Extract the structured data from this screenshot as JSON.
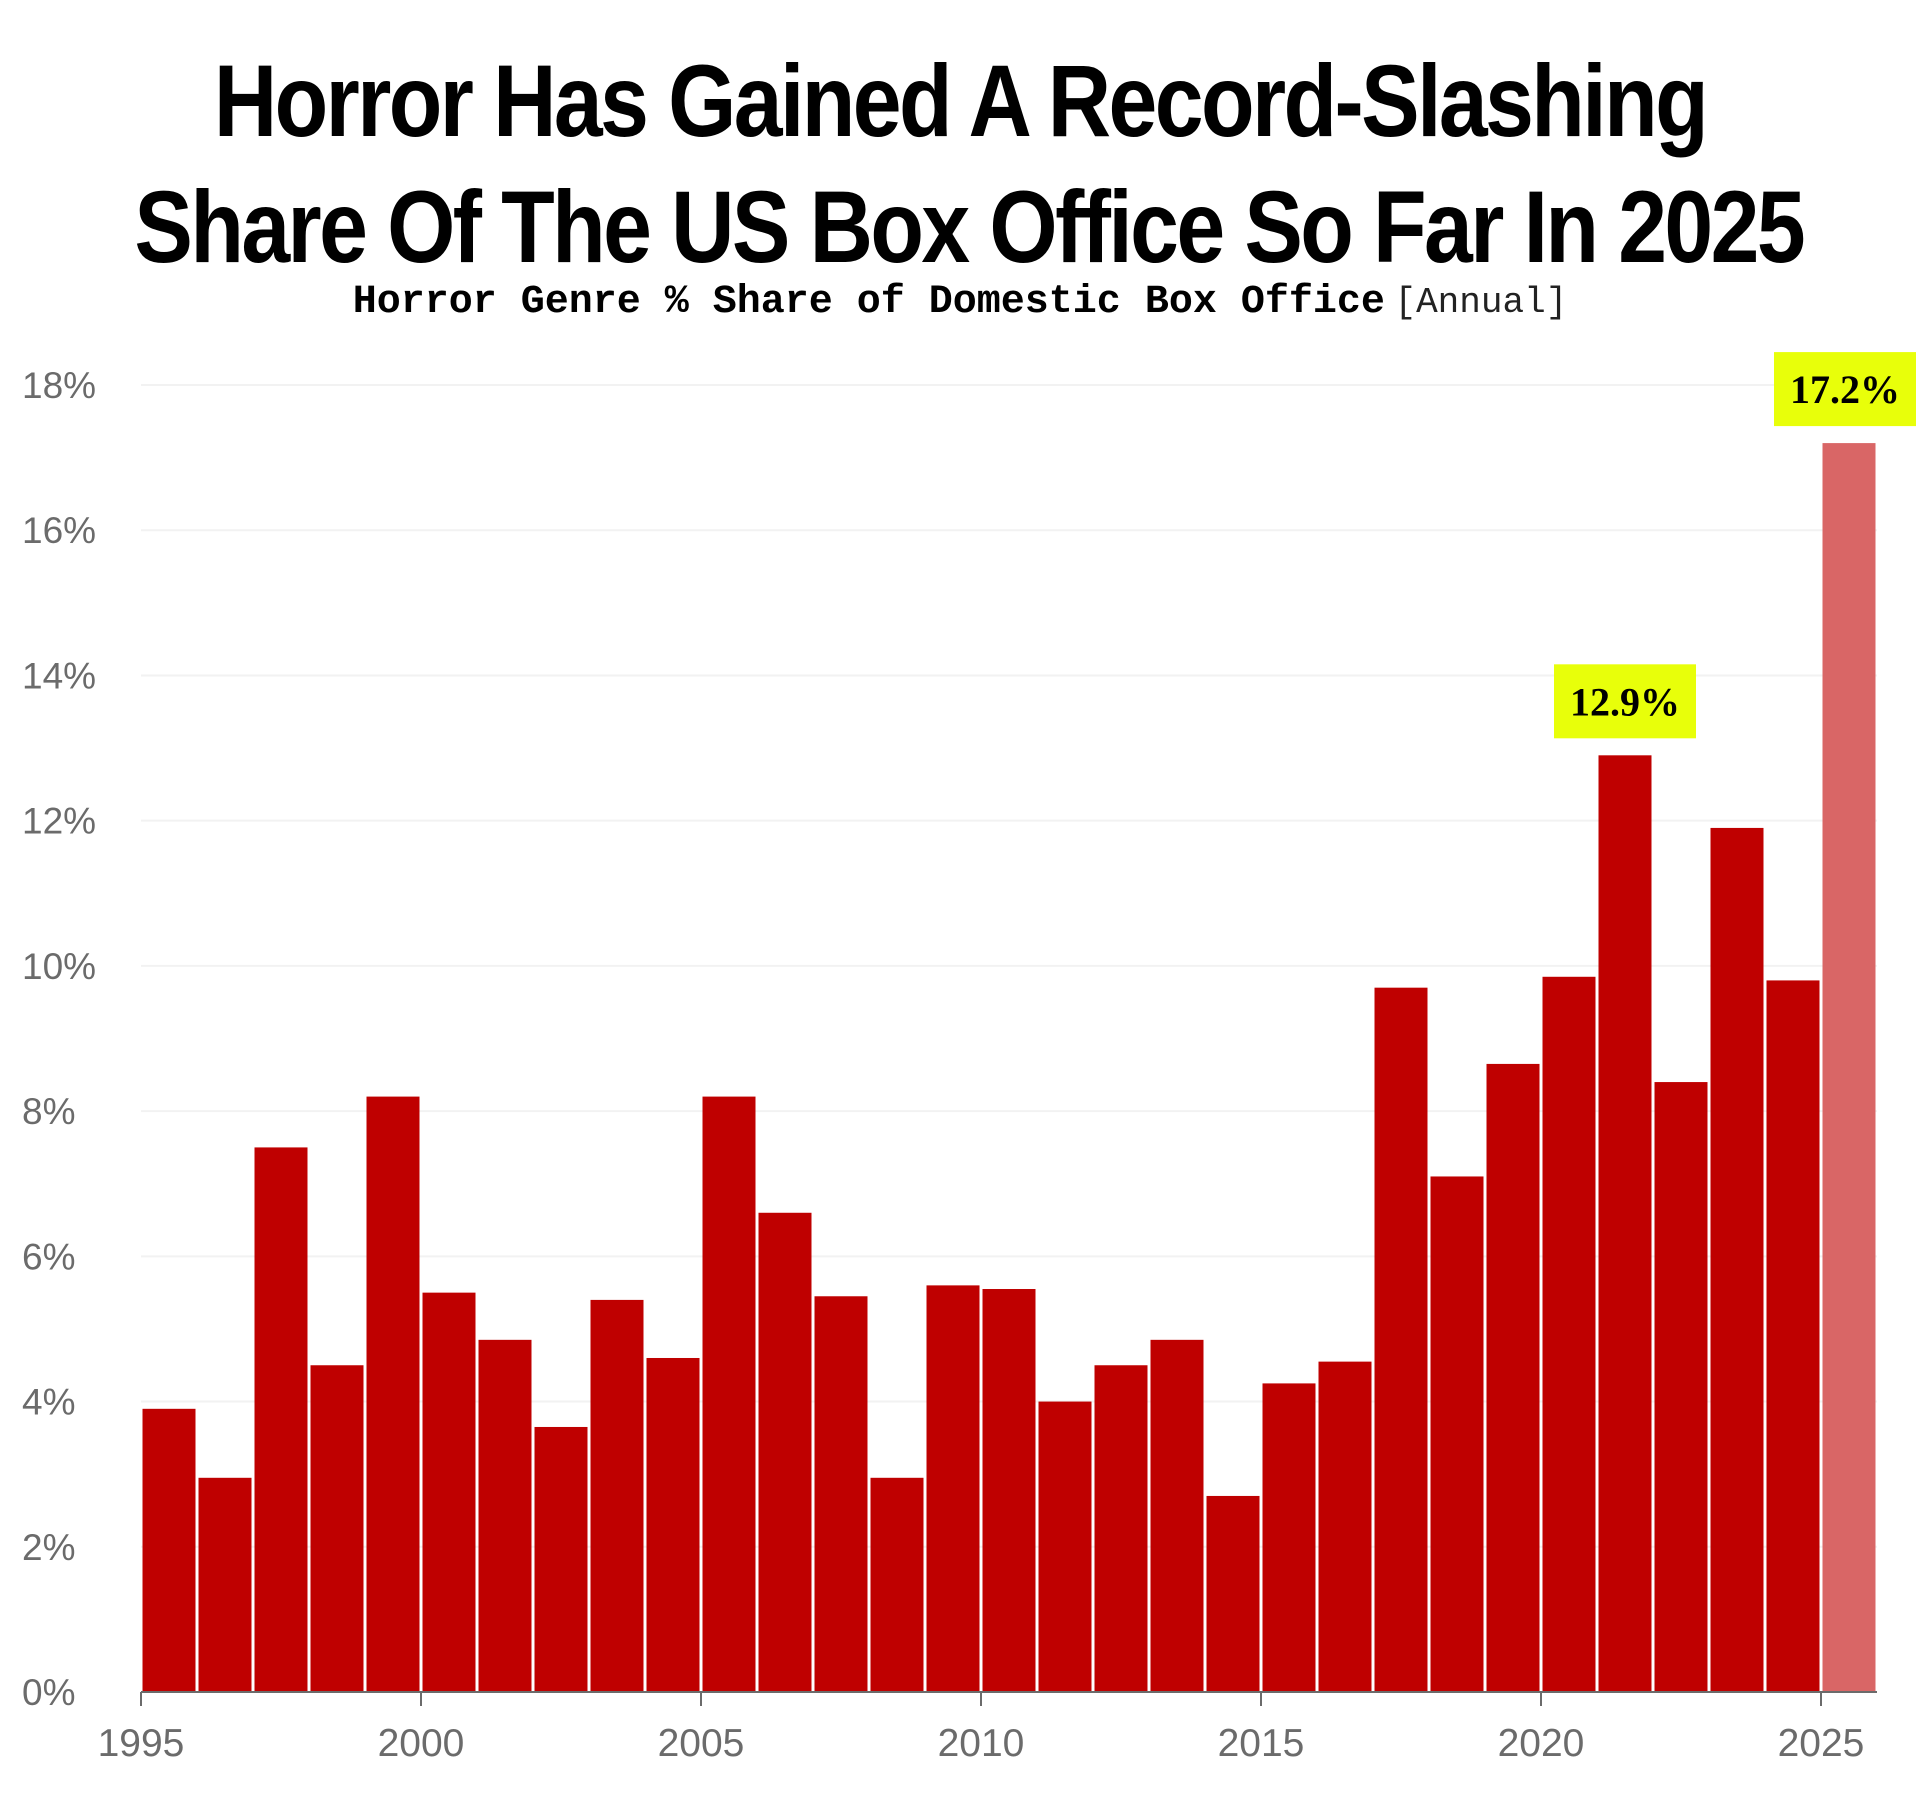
{
  "chart_data": {
    "type": "bar",
    "title_lines": [
      "Horror Has Gained A Record-Slashing",
      "Share Of The US Box Office So Far In 2025"
    ],
    "subtitle": "Horror Genre % Share of Domestic Box Office",
    "subtitle_note": "[Annual]",
    "categories": [
      "1995",
      "1996",
      "1997",
      "1998",
      "1999",
      "2000",
      "2001",
      "2002",
      "2003",
      "2004",
      "2005",
      "2006",
      "2007",
      "2008",
      "2009",
      "2010",
      "2011",
      "2012",
      "2013",
      "2014",
      "2015",
      "2016",
      "2017",
      "2018",
      "2019",
      "2020",
      "2021",
      "2022",
      "2023",
      "2024",
      "2025"
    ],
    "values": [
      3.9,
      2.95,
      7.5,
      4.5,
      8.2,
      5.5,
      4.85,
      3.65,
      5.4,
      4.6,
      8.2,
      6.6,
      5.45,
      2.95,
      5.6,
      5.55,
      4.0,
      4.5,
      4.85,
      2.7,
      4.25,
      4.55,
      9.7,
      7.1,
      8.65,
      9.85,
      12.9,
      8.4,
      11.9,
      9.8,
      17.2
    ],
    "highlight_year": "2025",
    "ylim": [
      0,
      18
    ],
    "y_ticks": [
      0,
      2,
      4,
      6,
      8,
      10,
      12,
      14,
      16,
      18
    ],
    "y_tick_labels": [
      "0%",
      "2%",
      "4%",
      "6%",
      "8%",
      "10%",
      "12%",
      "14%",
      "16%",
      "18%"
    ],
    "x_tick_labels": [
      "1995",
      "2000",
      "2005",
      "2010",
      "2015",
      "2020",
      "2025"
    ],
    "annotations": [
      {
        "year": "2021",
        "label": "12.9%"
      },
      {
        "year": "2025",
        "label": "17.2%"
      }
    ],
    "grid": true,
    "colors": {
      "bar": "#bf0000",
      "bar_highlight": "#d96666",
      "callout_bg": "#e8ff0a",
      "grid": "#f2f2f2",
      "axis": "#6b6b6b"
    }
  }
}
